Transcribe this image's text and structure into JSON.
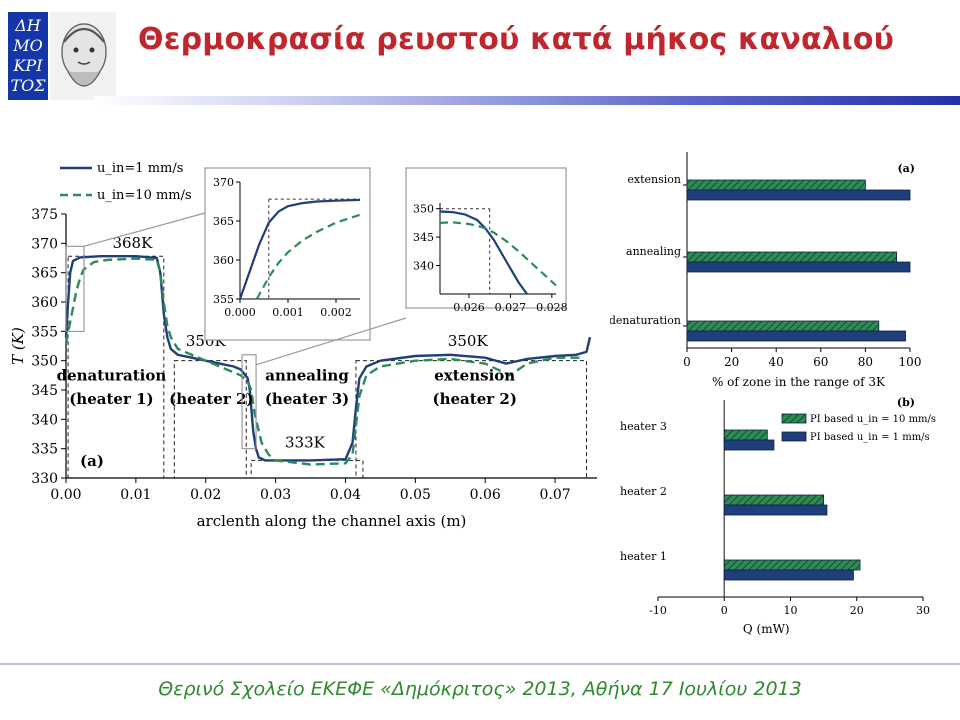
{
  "header": {
    "title": "Θερμοκρασία ρευστού κατά μήκος καναλιού",
    "logo_text": [
      "ΔΗ",
      "ΜΟ",
      "ΚΡΙ",
      "ΤΟΣ"
    ]
  },
  "footer": {
    "text": "Θερινό Σχολείο ΕΚΕΦΕ «Δημόκριτος» 2013, Αθήνα 17 Ιουλίου 2013"
  },
  "colors": {
    "title": "#c0262d",
    "navy": "#1f3f7a",
    "green": "#2e8b57",
    "footer": "#2e8b2e"
  },
  "chart_data": [
    {
      "type": "line",
      "panel_label": "(a)",
      "xlabel": "arclenth along the channel axis (m)",
      "ylabel": "T (K)",
      "xlim": [
        0,
        0.076
      ],
      "ylim": [
        330,
        375
      ],
      "x_ticks": [
        "0.00",
        "0.01",
        "0.02",
        "0.03",
        "0.04",
        "0.05",
        "0.06",
        "0.07"
      ],
      "y_ticks": [
        "330",
        "335",
        "340",
        "345",
        "350",
        "355",
        "360",
        "365",
        "370",
        "375"
      ],
      "legend": [
        "u_in=1 mm/s",
        "u_in=10 mm/s"
      ],
      "legend_position": "top-left",
      "series": [
        {
          "name": "u_in=1 mm/s",
          "style": "solid",
          "x": [
            0.0,
            0.0003,
            0.0006,
            0.001,
            0.002,
            0.005,
            0.01,
            0.013,
            0.0135,
            0.014,
            0.0145,
            0.015,
            0.016,
            0.018,
            0.02,
            0.022,
            0.024,
            0.025,
            0.026,
            0.0263,
            0.0268,
            0.0272,
            0.0276,
            0.0285,
            0.03,
            0.035,
            0.04,
            0.041,
            0.0415,
            0.042,
            0.043,
            0.045,
            0.05,
            0.055,
            0.06,
            0.063,
            0.066,
            0.07,
            0.073,
            0.0745,
            0.075
          ],
          "y": [
            354,
            360,
            365,
            367,
            367.6,
            367.8,
            367.8,
            367.5,
            365,
            358,
            354,
            352,
            351,
            350.5,
            350,
            349.5,
            349,
            348.5,
            347,
            345,
            338,
            335,
            333.5,
            333,
            333,
            333,
            333.2,
            336,
            342,
            347,
            349,
            350,
            350.8,
            351,
            350.5,
            349.5,
            350.3,
            350.8,
            351,
            351.5,
            354
          ]
        },
        {
          "name": "u_in=10 mm/s",
          "style": "dashed",
          "x": [
            0.0,
            0.0005,
            0.001,
            0.0015,
            0.002,
            0.0025,
            0.004,
            0.006,
            0.01,
            0.013,
            0.0135,
            0.014,
            0.0145,
            0.015,
            0.016,
            0.018,
            0.02,
            0.022,
            0.024,
            0.025,
            0.026,
            0.0265,
            0.027,
            0.028,
            0.029,
            0.03,
            0.035,
            0.04,
            0.041,
            0.0415,
            0.042,
            0.043,
            0.045,
            0.05,
            0.055,
            0.06,
            0.0635,
            0.066,
            0.07,
            0.074
          ],
          "y": [
            353,
            356,
            359,
            362,
            364,
            365.5,
            366.8,
            367.2,
            367.4,
            367.2,
            365,
            360,
            356,
            354,
            352,
            351,
            350,
            349,
            348,
            347.5,
            346.5,
            345,
            341,
            336,
            334,
            333,
            332.3,
            332.5,
            334,
            339,
            344,
            347.5,
            349,
            350,
            350.3,
            349.5,
            347.5,
            349.5,
            350.5,
            350.5
          ]
        }
      ],
      "annotations": [
        {
          "text": "368K",
          "x": 0.0095,
          "y": 369.2
        },
        {
          "text": "350K",
          "x": 0.02,
          "y": 352.5
        },
        {
          "text": "333K",
          "x": 0.0342,
          "y": 335.2
        },
        {
          "text": "350K",
          "x": 0.0575,
          "y": 352.5
        },
        {
          "text": "denaturation",
          "x": 0.0065,
          "y": 346.6
        },
        {
          "text": "(heater 1)",
          "x": 0.0065,
          "y": 342.6
        },
        {
          "text": "(heater 2)",
          "x": 0.0208,
          "y": 342.6
        },
        {
          "text": "annealing",
          "x": 0.0345,
          "y": 346.6
        },
        {
          "text": "(heater 3)",
          "x": 0.0345,
          "y": 342.6
        },
        {
          "text": "extension",
          "x": 0.0585,
          "y": 346.6
        },
        {
          "text": "(heater 2)",
          "x": 0.0585,
          "y": 342.6
        }
      ],
      "zones": [
        {
          "x": [
            0.0003,
            0.014
          ],
          "y_top": 367.8
        },
        {
          "x": [
            0.0155,
            0.0258
          ],
          "y_top": 350
        },
        {
          "x": [
            0.0265,
            0.0425
          ],
          "y_top": 333
        },
        {
          "x": [
            0.0415,
            0.0745
          ],
          "y_top": 350
        }
      ],
      "insets": [
        {
          "xlim": [
            0,
            0.0025
          ],
          "ylim": [
            355,
            370
          ],
          "x_ticks": [
            "0.000",
            "0.001",
            "0.002"
          ],
          "y_ticks": [
            "355",
            "360",
            "365",
            "370"
          ],
          "series": [
            {
              "name": "u_in=1 mm/s",
              "x": [
                0.0,
                0.0002,
                0.0004,
                0.0006,
                0.0008,
                0.001,
                0.0013,
                0.0016,
                0.002,
                0.0025
              ],
              "y": [
                355,
                358.5,
                362,
                364.8,
                366.2,
                366.9,
                367.3,
                367.5,
                367.6,
                367.7
              ]
            },
            {
              "name": "u_in=10 mm/s",
              "x": [
                0.00035,
                0.0006,
                0.0008,
                0.001,
                0.0013,
                0.0016,
                0.002,
                0.0025
              ],
              "y": [
                355,
                357.8,
                359.6,
                361,
                362.5,
                363.6,
                364.8,
                365.8
              ]
            }
          ],
          "dashed_box": {
            "x": [
              0.0006,
              0.0025
            ],
            "y": [
              355,
              367.8
            ]
          }
        },
        {
          "xlim": [
            0.0253,
            0.0281
          ],
          "ylim": [
            335,
            351
          ],
          "x_ticks": [
            "0.026",
            "0.027",
            "0.028"
          ],
          "y_ticks": [
            "340",
            "345",
            "350"
          ],
          "series": [
            {
              "name": "u_in=1 mm/s",
              "x": [
                0.0253,
                0.0256,
                0.0259,
                0.0262,
                0.0264,
                0.0266,
                0.0268,
                0.027,
                0.0272,
                0.0274
              ],
              "y": [
                349.5,
                349.4,
                349,
                348,
                346.5,
                344.5,
                342,
                339.5,
                337,
                335
              ]
            },
            {
              "name": "u_in=10 mm/s",
              "x": [
                0.0253,
                0.0256,
                0.026,
                0.0263,
                0.0266,
                0.0269,
                0.0272,
                0.0275,
                0.0278,
                0.0281
              ],
              "y": [
                347.5,
                347.6,
                347.3,
                346.8,
                345.8,
                344.3,
                342.5,
                340.5,
                338.5,
                336.5
              ]
            }
          ],
          "dashed_box": {
            "x": [
              0.0253,
              0.0265
            ],
            "y": [
              335,
              350
            ]
          }
        }
      ]
    },
    {
      "type": "bar",
      "orientation": "horizontal",
      "panel_label": "(a)",
      "categories": [
        "extension",
        "annealing",
        "denaturation"
      ],
      "xlabel": "% of zone in the range of 3K",
      "xlim": [
        0,
        100
      ],
      "x_ticks": [
        "0",
        "20",
        "40",
        "60",
        "80",
        "100"
      ],
      "series": [
        {
          "name": "u_in=10 mm/s",
          "values": [
            80,
            94,
            86
          ]
        },
        {
          "name": "u_in=1 mm/s",
          "values": [
            100,
            100,
            98
          ]
        }
      ]
    },
    {
      "type": "bar",
      "orientation": "horizontal",
      "panel_label": "(b)",
      "categories": [
        "heater 3",
        "heater 2",
        "heater 1"
      ],
      "xlabel": "Q (mW)",
      "xlim": [
        -10,
        30
      ],
      "x_ticks": [
        "-10",
        "0",
        "10",
        "20",
        "30"
      ],
      "legend_position": "top-right",
      "series": [
        {
          "name": "PI based u_in = 10 mm/s",
          "values": [
            6.5,
            15,
            20.5
          ]
        },
        {
          "name": "PI based u_in = 1 mm/s",
          "values": [
            7.5,
            15.5,
            19.5
          ]
        }
      ]
    }
  ]
}
